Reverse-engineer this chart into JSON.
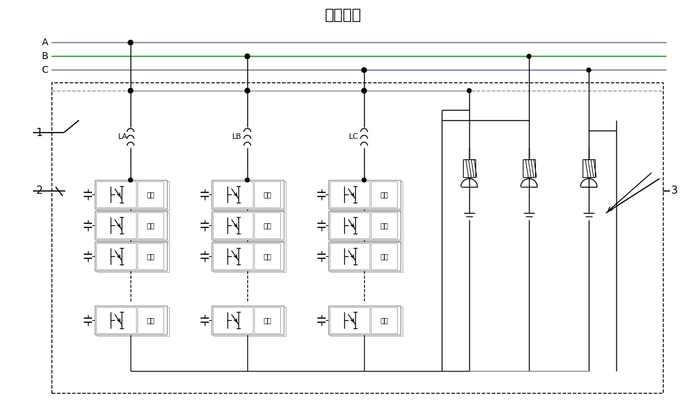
{
  "title": "高压母线",
  "bg_color": "#ffffff",
  "bus_color_purple": "#9b8fa8",
  "bus_color_green": "#5da05d",
  "fig_width": 10.0,
  "fig_height": 5.91,
  "label_bypass": "旁路",
  "label_LA": "LA",
  "label_LB": "LB",
  "label_LC": "LC"
}
